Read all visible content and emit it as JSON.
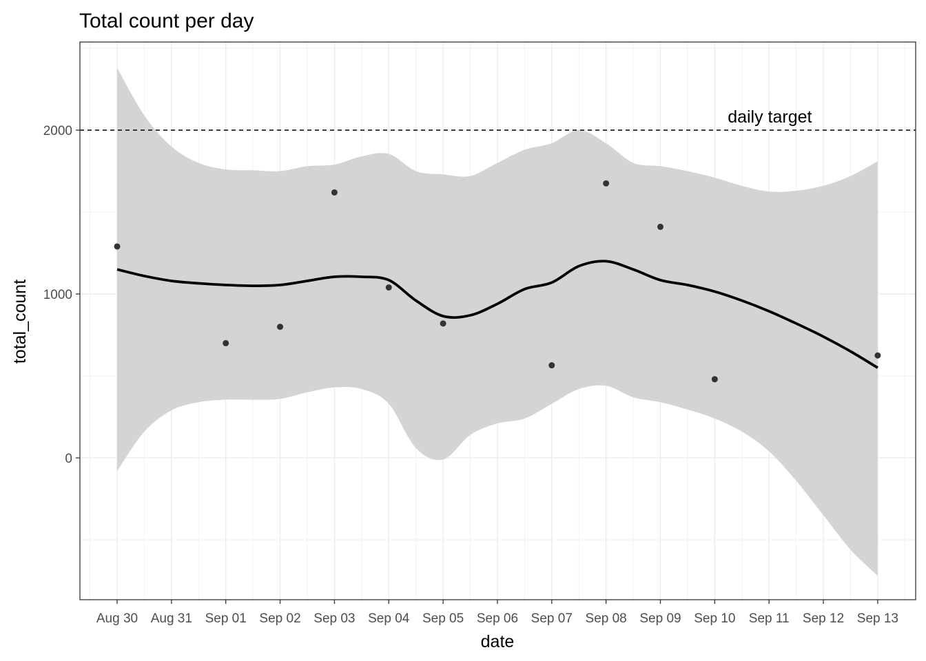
{
  "chart_data": {
    "type": "scatter",
    "title": "Total count per day",
    "xlabel": "date",
    "ylabel": "total_count",
    "x_ticks": [
      "Aug 30",
      "Aug 31",
      "Sep 01",
      "Sep 02",
      "Sep 03",
      "Sep 04",
      "Sep 05",
      "Sep 06",
      "Sep 07",
      "Sep 08",
      "Sep 09",
      "Sep 10",
      "Sep 11",
      "Sep 12",
      "Sep 13"
    ],
    "y_ticks": [
      0,
      1000,
      2000
    ],
    "y_tick_labels": [
      "0",
      "1000",
      "2000"
    ],
    "xlim": [
      "Aug 30",
      "Sep 13"
    ],
    "ylim": [
      -860,
      2550
    ],
    "grid": true,
    "theme": "bw",
    "points": [
      {
        "x": "Aug 30",
        "y": 1290
      },
      {
        "x": "Sep 01",
        "y": 700
      },
      {
        "x": "Sep 02",
        "y": 800
      },
      {
        "x": "Sep 03",
        "y": 1620
      },
      {
        "x": "Sep 04",
        "y": 1040
      },
      {
        "x": "Sep 05",
        "y": 820
      },
      {
        "x": "Sep 07",
        "y": 565
      },
      {
        "x": "Sep 08",
        "y": 1675
      },
      {
        "x": "Sep 09",
        "y": 1410
      },
      {
        "x": "Sep 10",
        "y": 480
      },
      {
        "x": "Sep 13",
        "y": 625
      }
    ],
    "smooth": {
      "x": [
        0,
        0.5,
        1,
        1.5,
        2,
        2.5,
        3,
        3.5,
        4,
        4.5,
        5,
        5.5,
        6,
        6.5,
        7,
        7.5,
        8,
        8.5,
        9,
        9.5,
        10,
        10.5,
        11,
        11.5,
        12,
        12.5,
        13,
        13.5,
        14
      ],
      "y": [
        1150,
        1110,
        1080,
        1065,
        1055,
        1050,
        1055,
        1080,
        1105,
        1105,
        1085,
        960,
        865,
        870,
        940,
        1030,
        1070,
        1170,
        1200,
        1150,
        1085,
        1055,
        1015,
        960,
        895,
        820,
        740,
        650,
        550
      ],
      "lower": [
        -80,
        160,
        290,
        340,
        355,
        355,
        360,
        400,
        430,
        420,
        330,
        60,
        -10,
        140,
        210,
        240,
        330,
        420,
        440,
        370,
        340,
        295,
        240,
        160,
        40,
        -140,
        -350,
        -560,
        -720
      ],
      "upper": [
        2380,
        2090,
        1900,
        1800,
        1760,
        1755,
        1750,
        1780,
        1790,
        1840,
        1855,
        1750,
        1730,
        1720,
        1800,
        1880,
        1920,
        2000,
        1920,
        1800,
        1780,
        1750,
        1710,
        1660,
        1625,
        1630,
        1660,
        1720,
        1810
      ],
      "line_color": "#000000",
      "band_color": "#d4d4d4"
    },
    "hline": {
      "y": 2000,
      "style": "dashed",
      "label": "daily target",
      "label_x": 11,
      "color": "#000000"
    },
    "point_color": "#333333"
  }
}
